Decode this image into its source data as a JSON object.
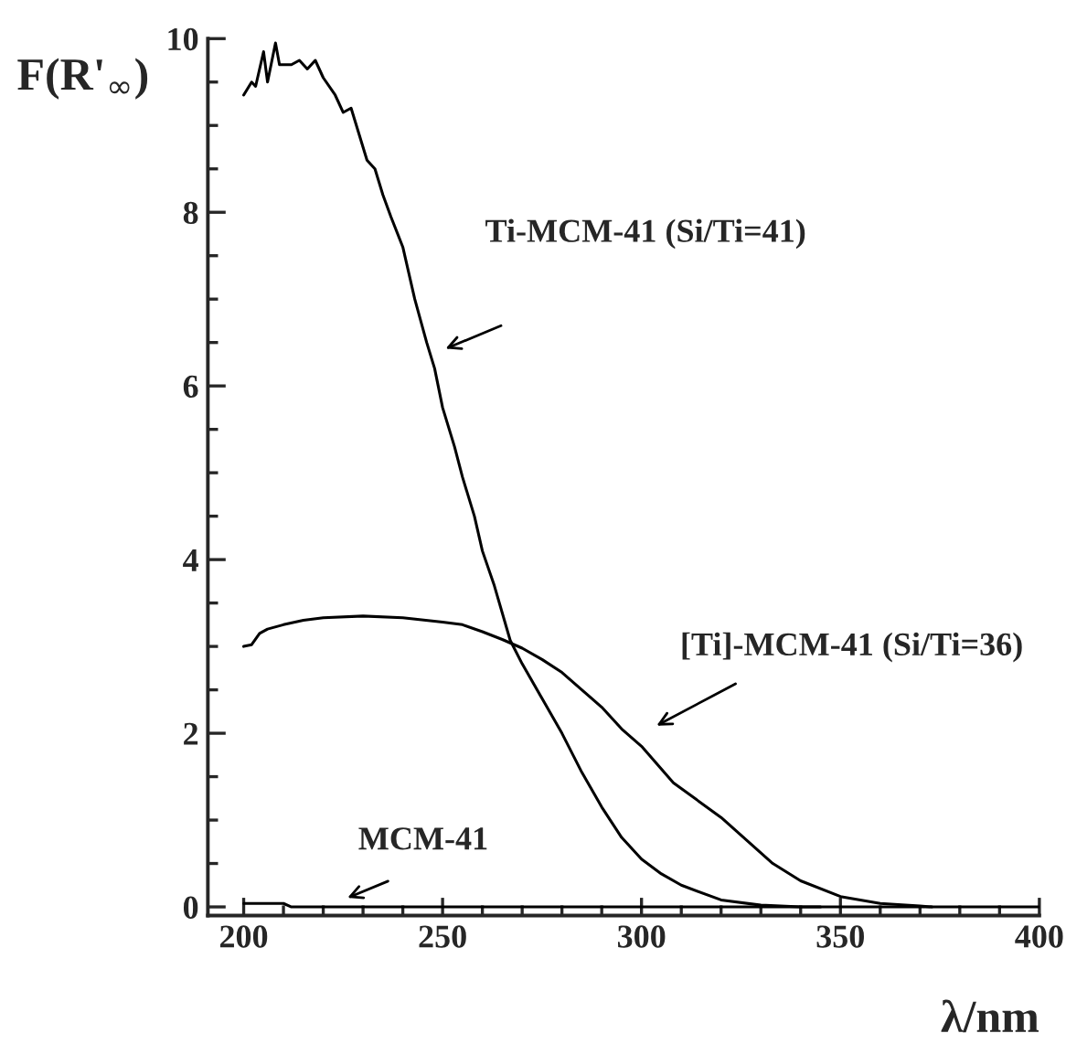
{
  "chart_data": {
    "type": "line",
    "xlabel": "λ/nm",
    "ylabel": "F(R'$_{∞}$)",
    "xlim": [
      191,
      400
    ],
    "ylim": [
      -0.1,
      10
    ],
    "xticks": [
      200,
      250,
      300,
      350,
      400
    ],
    "yticks": [
      0,
      2,
      4,
      6,
      8,
      10
    ],
    "grid": false,
    "legend": false,
    "marker": "none",
    "line_style": "solid",
    "series": [
      {
        "color": "#000000",
        "x": [
          200,
          202,
          203,
          205,
          206,
          208,
          209,
          212,
          214,
          216,
          218,
          220,
          223,
          225,
          227,
          229,
          231,
          233,
          235,
          237,
          240,
          243,
          246,
          248,
          250,
          253,
          255,
          258,
          260,
          263,
          267,
          270,
          275,
          280,
          285,
          290,
          295,
          300,
          305,
          310,
          320,
          330,
          340,
          345
        ],
        "values": [
          9.35,
          9.5,
          9.45,
          9.85,
          9.5,
          9.95,
          9.7,
          9.7,
          9.75,
          9.65,
          9.75,
          9.55,
          9.35,
          9.15,
          9.2,
          8.9,
          8.6,
          8.5,
          8.2,
          7.95,
          7.6,
          7.0,
          6.5,
          6.2,
          5.75,
          5.3,
          4.95,
          4.5,
          4.1,
          3.7,
          3.07,
          2.8,
          2.4,
          2.0,
          1.55,
          1.15,
          0.8,
          0.55,
          0.38,
          0.25,
          0.08,
          0.02,
          0.0,
          0.0
        ]
      },
      {
        "color": "#000000",
        "x": [
          200,
          202,
          204,
          206,
          210,
          215,
          220,
          230,
          240,
          250,
          255,
          260,
          265,
          270,
          275,
          280,
          285,
          290,
          295,
          300,
          308,
          320,
          333,
          340,
          350,
          360,
          370,
          373
        ],
        "values": [
          3.0,
          3.02,
          3.15,
          3.2,
          3.25,
          3.3,
          3.33,
          3.35,
          3.33,
          3.28,
          3.25,
          3.17,
          3.08,
          2.98,
          2.85,
          2.7,
          2.5,
          2.3,
          2.05,
          1.85,
          1.43,
          1.03,
          0.5,
          0.3,
          0.12,
          0.04,
          0.01,
          0.0
        ]
      },
      {
        "color": "#000000",
        "x": [
          200,
          210,
          212,
          400
        ],
        "values": [
          0.04,
          0.04,
          0.0,
          0.0
        ]
      }
    ],
    "annotations": [
      "Ti-MCM-41 (Si/Ti=41)",
      "[Ti]-MCM-41 (Si/Ti=36)",
      "MCM-41"
    ]
  }
}
